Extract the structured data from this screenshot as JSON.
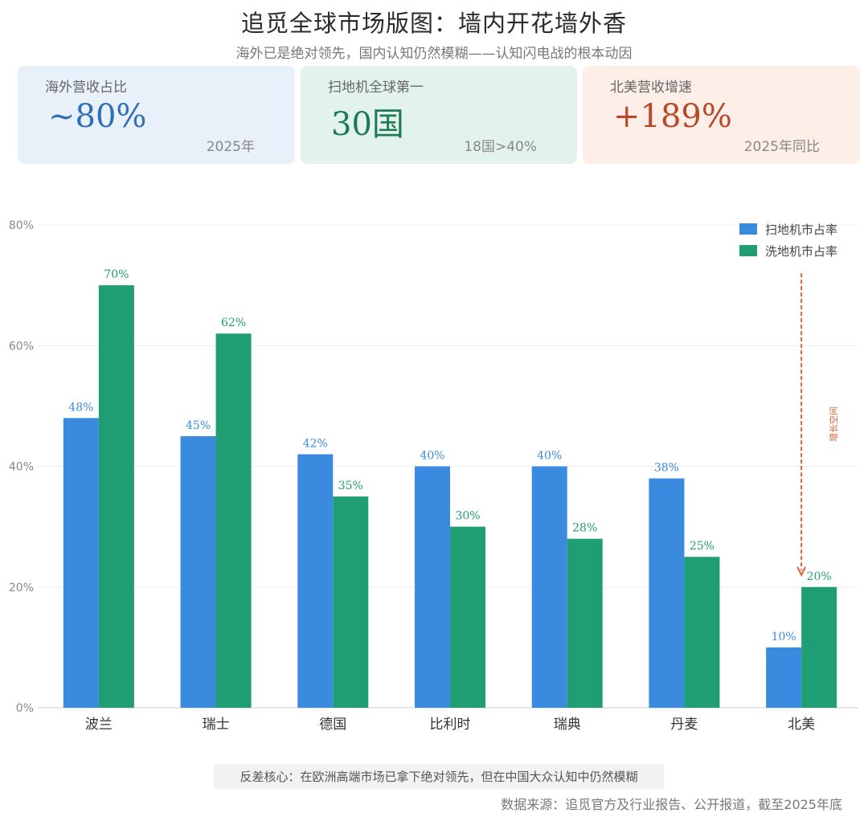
{
  "header": {
    "title": "追觅全球市场版图：墙内开花墙外香",
    "subtitle": "海外已是绝对领先，国内认知仍然模糊——认知闪电战的根本动因"
  },
  "cards": [
    {
      "label": "海外营收占比",
      "value": "~80%",
      "note": "2025年",
      "color": "#2f6fb7"
    },
    {
      "label": "扫地机全球第一",
      "value": "30国",
      "note": "18国>40%",
      "color": "#1e7a55"
    },
    {
      "label": "北美营收增速",
      "value": "+189%",
      "note": "2025年同比",
      "color": "#b8482a"
    }
  ],
  "chart_data": {
    "type": "bar",
    "categories": [
      "波兰",
      "瑞士",
      "德国",
      "比利时",
      "瑞典",
      "丹麦",
      "北美"
    ],
    "series": [
      {
        "name": "扫地机市占率",
        "values": [
          48,
          45,
          42,
          40,
          40,
          38,
          10
        ],
        "color": "#3a8be0"
      },
      {
        "name": "洗地机市占率",
        "values": [
          70,
          62,
          35,
          30,
          28,
          25,
          20
        ],
        "color": "#1e9e72"
      }
    ],
    "ylim": [
      0,
      80
    ],
    "yticks": [
      0,
      20,
      40,
      60,
      80
    ],
    "ytick_labels": [
      "0%",
      "20%",
      "40%",
      "60%",
      "80%"
    ],
    "data_labels": [
      [
        "48%",
        "45%",
        "42%",
        "40%",
        "40%",
        "38%",
        "10%"
      ],
      [
        "70%",
        "62%",
        "35%",
        "30%",
        "28%",
        "25%",
        "20%"
      ]
    ],
    "legend_position": "top-right",
    "grid": true,
    "annotation": {
      "text": "增长空间",
      "category": "北美",
      "from_value": 72,
      "to_value": 22,
      "color": "#d9623b"
    }
  },
  "footer": {
    "takeaway": "反差核心：在欧洲高端市场已拿下绝对领先，但在中国大众认知中仍然模糊",
    "source": "数据来源：追觅官方及行业报告、公开报道，截至2025年底"
  }
}
